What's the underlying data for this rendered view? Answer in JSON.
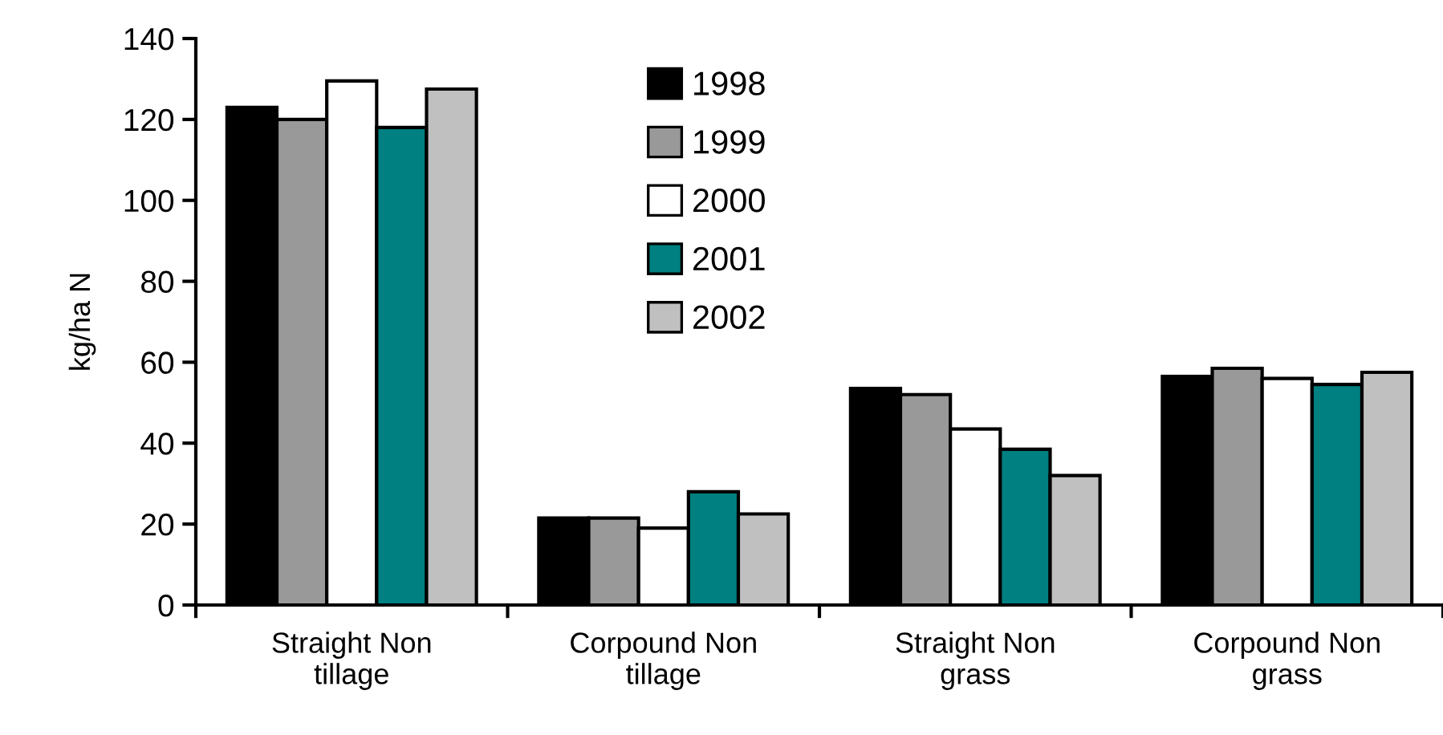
{
  "chart_data": {
    "type": "bar",
    "ylabel": "kg/ha N",
    "categories": [
      "Straight Non\ntillage",
      "Corpound Non\ntillage",
      "Straight Non\ngrass",
      "Corpound Non\ngrass"
    ],
    "series": [
      {
        "name": "1998",
        "color": "#000000",
        "values": [
          123,
          21.5,
          53.5,
          56.5
        ]
      },
      {
        "name": "1999",
        "color": "#999999",
        "values": [
          120,
          21.5,
          52,
          58.5
        ]
      },
      {
        "name": "2000",
        "color": "#ffffff",
        "values": [
          129.5,
          19,
          43.5,
          56
        ]
      },
      {
        "name": "2001",
        "color": "#008080",
        "values": [
          118,
          28,
          38.5,
          54.5
        ]
      },
      {
        "name": "2002",
        "color": "#c0c0c0",
        "values": [
          127.5,
          22.5,
          32,
          57.5
        ]
      }
    ],
    "ylim": [
      0,
      140
    ],
    "yticks": [
      0,
      20,
      40,
      60,
      80,
      100,
      120,
      140
    ],
    "grid": false,
    "legend": "top"
  }
}
